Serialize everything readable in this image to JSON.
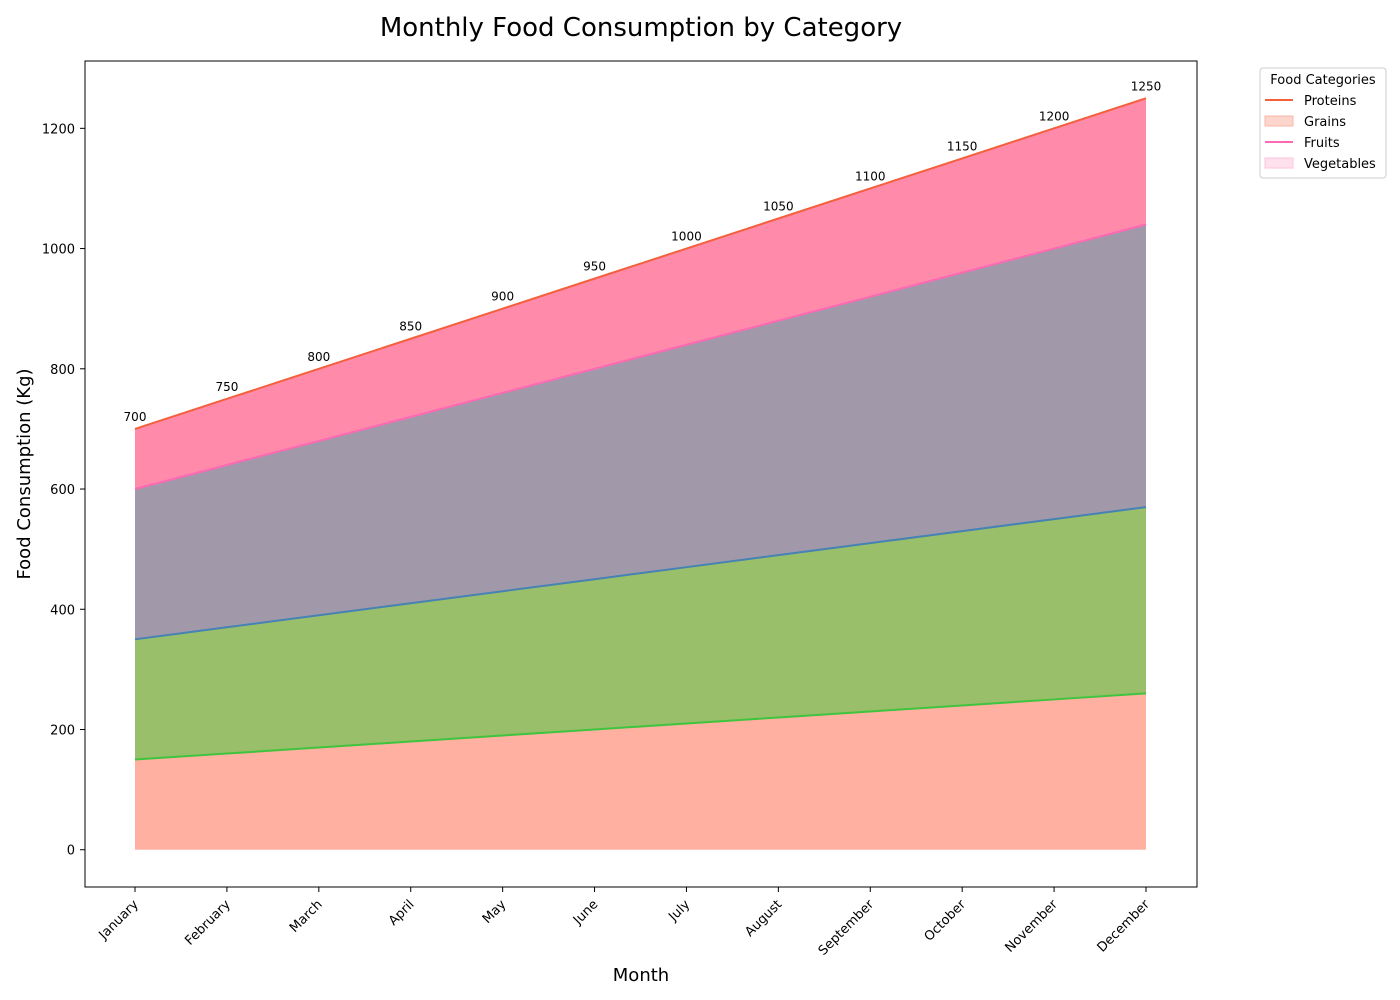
{
  "chart_data": {
    "type": "area",
    "stacked": true,
    "title": "Monthly Food Consumption by Category",
    "xlabel": "Month",
    "ylabel": "Food Consumption (Kg)",
    "categories": [
      "January",
      "February",
      "March",
      "April",
      "May",
      "June",
      "July",
      "August",
      "September",
      "October",
      "November",
      "December"
    ],
    "ylim": [
      -62,
      1312
    ],
    "yticks": [
      0,
      200,
      400,
      600,
      800,
      1000,
      1200
    ],
    "grid": false,
    "legend": {
      "title": "Food Categories",
      "placement": "outside-top-right"
    },
    "series": [
      {
        "name": "Vegetables",
        "values": [
          150,
          160,
          170,
          180,
          190,
          200,
          210,
          220,
          230,
          240,
          250,
          260
        ],
        "fill": "#ffb0a0",
        "line": "#3ec43e"
      },
      {
        "name": "Fruits",
        "values": [
          200,
          210,
          220,
          230,
          240,
          250,
          260,
          270,
          280,
          290,
          300,
          310
        ],
        "fill": "#99bf6a",
        "line": "#4682b4"
      },
      {
        "name": "Grains",
        "values": [
          250,
          270,
          290,
          310,
          330,
          350,
          370,
          390,
          410,
          430,
          450,
          470
        ],
        "fill": "#a199aa",
        "line": "#ff69b4"
      },
      {
        "name": "Proteins",
        "values": [
          100,
          110,
          120,
          130,
          140,
          150,
          160,
          170,
          180,
          190,
          200,
          210
        ],
        "fill": "#ff8aaa",
        "line": "#f4603c"
      }
    ],
    "totals": [
      700,
      750,
      800,
      850,
      900,
      950,
      1000,
      1050,
      1100,
      1150,
      1200,
      1250
    ],
    "legend_items": [
      {
        "name": "Proteins",
        "kind": "line",
        "color": "#f4603c"
      },
      {
        "name": "Grains",
        "kind": "patch",
        "color": "#fdd5cc",
        "edge": "#f6b8a8"
      },
      {
        "name": "Fruits",
        "kind": "line",
        "color": "#ff69b4"
      },
      {
        "name": "Vegetables",
        "kind": "patch",
        "color": "#ffe1ee",
        "edge": "#ffc3dc"
      }
    ]
  }
}
